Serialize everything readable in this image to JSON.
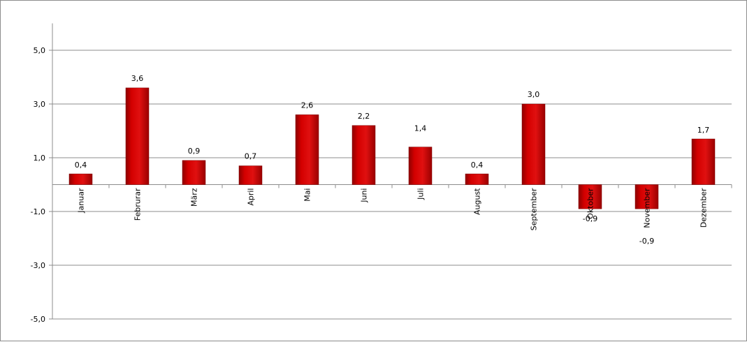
{
  "chart_data": {
    "type": "bar",
    "categories": [
      "Januar",
      "Februrar",
      "März",
      "April",
      "Mai",
      "Juni",
      "Juli",
      "August",
      "September",
      "Oktober",
      "November",
      "Dezember"
    ],
    "values": [
      0.4,
      3.6,
      0.9,
      0.7,
      2.6,
      2.2,
      1.4,
      0.4,
      3.0,
      -0.9,
      -0.9,
      1.7
    ],
    "data_labels": [
      "0,4",
      "3,6",
      "0,9",
      "0,7",
      "2,6",
      "2,2",
      "1,4",
      "0,4",
      "3,0",
      "-0,9",
      "-0,9",
      "1,7"
    ],
    "ylim": [
      -5,
      6
    ],
    "yticks": [
      5,
      3,
      1,
      -1,
      -3,
      -5
    ],
    "ytick_labels": [
      "5,0",
      "3,0",
      "1,0",
      "-1,0",
      "-3,0",
      "-5,0"
    ],
    "grid": true,
    "bar_color": "#cc0000"
  }
}
